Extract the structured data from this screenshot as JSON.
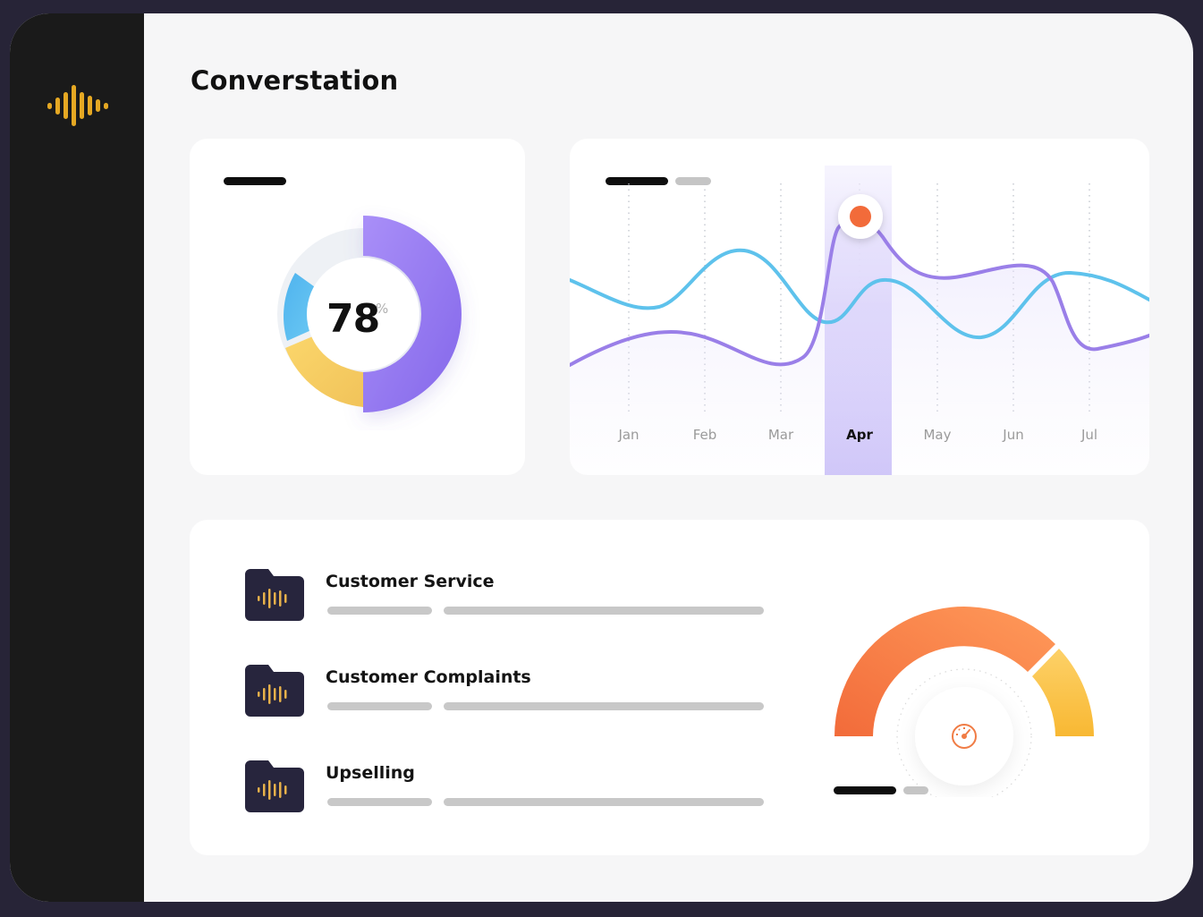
{
  "app": {
    "title": "Converstation",
    "accent": "#e5a823"
  },
  "donut": {
    "value": "78",
    "unit": "%",
    "segments": [
      {
        "name": "purple",
        "color": "#8e76f0",
        "fraction": 0.5
      },
      {
        "name": "yellow",
        "color": "#f6cd62",
        "fraction": 0.22
      },
      {
        "name": "blue",
        "color": "#56bdf0",
        "fraction": 0.13
      }
    ]
  },
  "trend_chart": {
    "months": [
      "Jan",
      "Feb",
      "Mar",
      "Apr",
      "May",
      "Jun",
      "Jul"
    ],
    "active_month": "Apr",
    "series_colors": {
      "purple": "#9a7fe8",
      "blue": "#5ec2ec"
    },
    "marker_color": "#f26b3a"
  },
  "categories": [
    {
      "label": "Customer Service",
      "icon": "audio-folder-icon"
    },
    {
      "label": "Customer Complaints",
      "icon": "audio-folder-icon"
    },
    {
      "label": "Upselling",
      "icon": "audio-folder-icon"
    }
  ],
  "gauge": {
    "colors": {
      "start": "#f26b3a",
      "end": "#fbc24a"
    },
    "icon": "speedometer-icon"
  }
}
